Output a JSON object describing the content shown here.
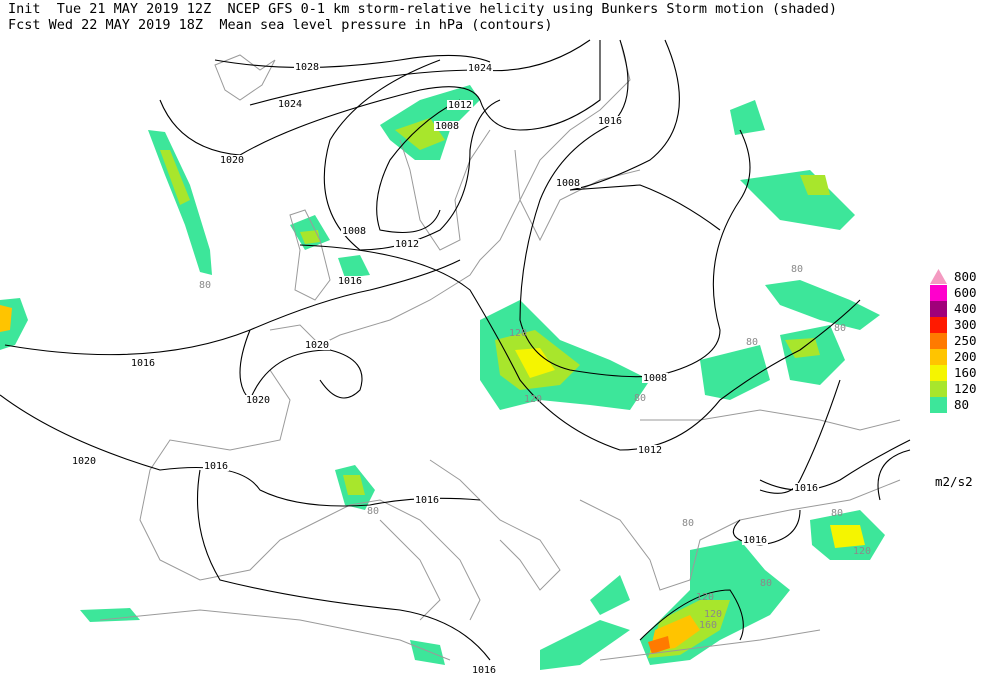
{
  "header": {
    "line1": "Init  Tue 21 MAY 2019 12Z  NCEP GFS 0-1 km storm-relative helicity using Bunkers Storm motion (shaded)",
    "line2": "Fcst Wed 22 MAY 2019 18Z  Mean sea level pressure in hPa (contours)"
  },
  "contour_labels": [
    1028,
    1024,
    1020,
    1024,
    1012,
    1008,
    1016,
    1008,
    1008,
    1012,
    1016,
    1020,
    1016,
    1020,
    1020,
    1016,
    1016,
    1008,
    1012,
    1016,
    1016,
    1016
  ],
  "shade_labels": [
    120,
    120,
    80,
    80,
    80,
    80,
    80,
    80,
    120,
    120,
    160,
    80,
    120,
    80,
    80
  ],
  "legend": {
    "levels": [
      {
        "value": 800,
        "color": "#f49ac1"
      },
      {
        "value": 600,
        "color": "#ff00cc"
      },
      {
        "value": 400,
        "color": "#a0007a"
      },
      {
        "value": 300,
        "color": "#ff1a00"
      },
      {
        "value": 250,
        "color": "#ff7a00"
      },
      {
        "value": 200,
        "color": "#ffc400"
      },
      {
        "value": 160,
        "color": "#f5f500"
      },
      {
        "value": 120,
        "color": "#a8e62c"
      },
      {
        "value": 80,
        "color": "#3de69a"
      }
    ],
    "unit": "m2/s2"
  }
}
